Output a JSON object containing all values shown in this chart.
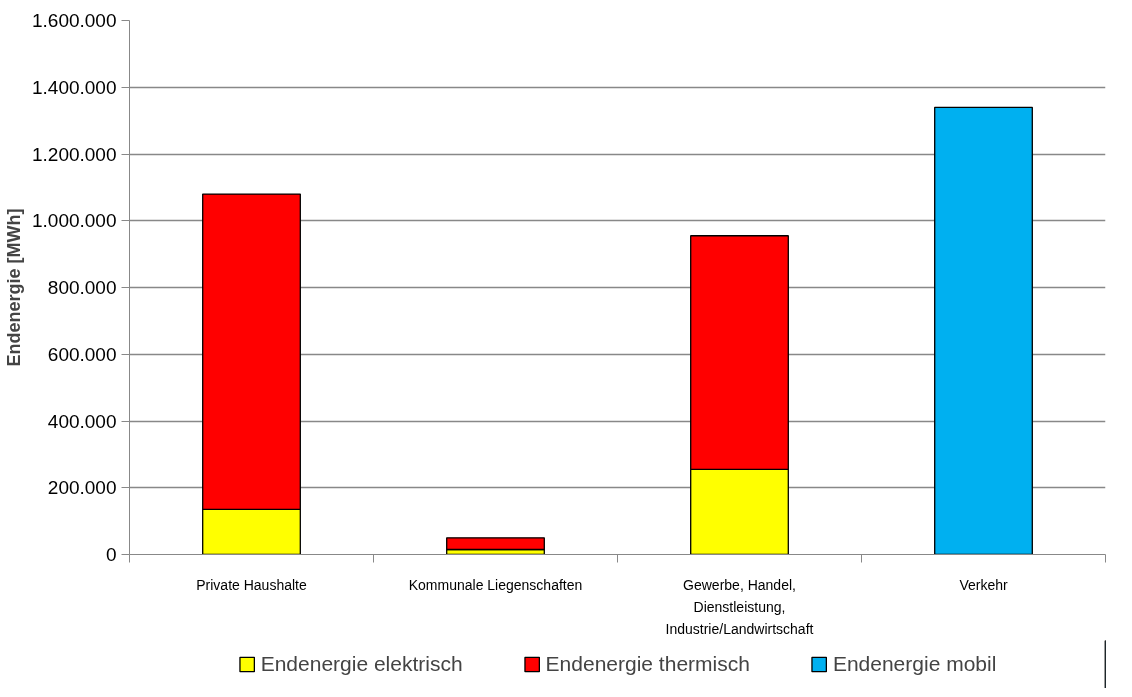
{
  "chart_data": {
    "type": "bar",
    "stacked": true,
    "ylabel": "Endenergie [MWh]",
    "categories": [
      "Private Haushalte",
      "Kommunale Liegenschaften",
      "Gewerbe, Handel, Dienstleistung, Industrie/Landwirtschaft",
      "Verkehr"
    ],
    "series": [
      {
        "name": "Endenergie elektrisch",
        "color": "#ffff00",
        "values": [
          135000,
          15000,
          255000,
          null
        ]
      },
      {
        "name": "Endenergie thermisch",
        "color": "#ff0000",
        "values": [
          945000,
          35000,
          700000,
          null
        ]
      },
      {
        "name": "Endenergie mobil",
        "color": "#00b0f0",
        "values": [
          null,
          null,
          null,
          1340000
        ]
      }
    ],
    "ylim": [
      0,
      1600000
    ],
    "yticks": [
      {
        "value": 0,
        "label": "0"
      },
      {
        "value": 200000,
        "label": "200.000"
      },
      {
        "value": 400000,
        "label": "400.000"
      },
      {
        "value": 600000,
        "label": "600.000"
      },
      {
        "value": 800000,
        "label": "800.000"
      },
      {
        "value": 1000000,
        "label": "1.000.000"
      },
      {
        "value": 1200000,
        "label": "1.200.000"
      },
      {
        "value": 1400000,
        "label": "1.400.000"
      },
      {
        "value": 1600000,
        "label": "1.600.000"
      }
    ],
    "grid": "y",
    "legend": "bottom"
  }
}
